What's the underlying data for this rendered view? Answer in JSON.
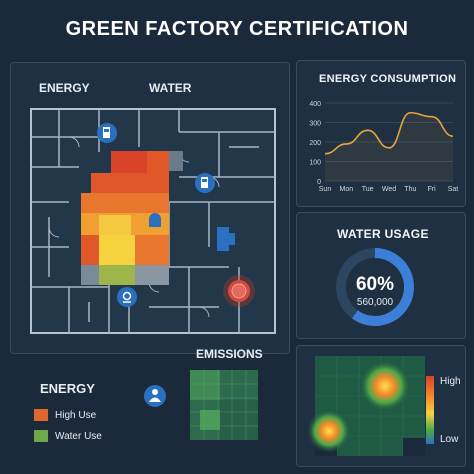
{
  "title": "GREEN FACTORY CERTIFICATION",
  "map": {
    "energy_label": "ENERGY",
    "water_label": "WATER"
  },
  "energy_consumption": {
    "title": "ENERGY CONSUMPTION",
    "chart_data": {
      "type": "line",
      "categories": [
        "Sun",
        "Mon",
        "Tue",
        "Wed",
        "Thu",
        "Fri",
        "Sat"
      ],
      "series": [
        {
          "values": [
            140,
            190,
            260,
            170,
            350,
            330,
            230
          ]
        }
      ],
      "yticks": [
        0,
        100,
        200,
        300,
        400
      ],
      "ylim": [
        0,
        400
      ],
      "grid": true,
      "line_color": "#e8a33a"
    }
  },
  "water_usage": {
    "title": "WATER USAGE",
    "percent_label": "60%",
    "value_label": "560,000",
    "fill_fraction": 0.6,
    "ring_color": "#3b7fd8"
  },
  "emissions": {
    "title": "EMISSIONS"
  },
  "legend": {
    "title": "ENERGY",
    "items": [
      {
        "label": "High Use",
        "color": "#e0662e"
      },
      {
        "label": "Water Use",
        "color": "#6ea84a"
      }
    ]
  },
  "heat_scale": {
    "high_label": "High",
    "low_label": "Low"
  },
  "icons": [
    "gas-pump-icon",
    "location-pin-icon",
    "person-icon"
  ]
}
